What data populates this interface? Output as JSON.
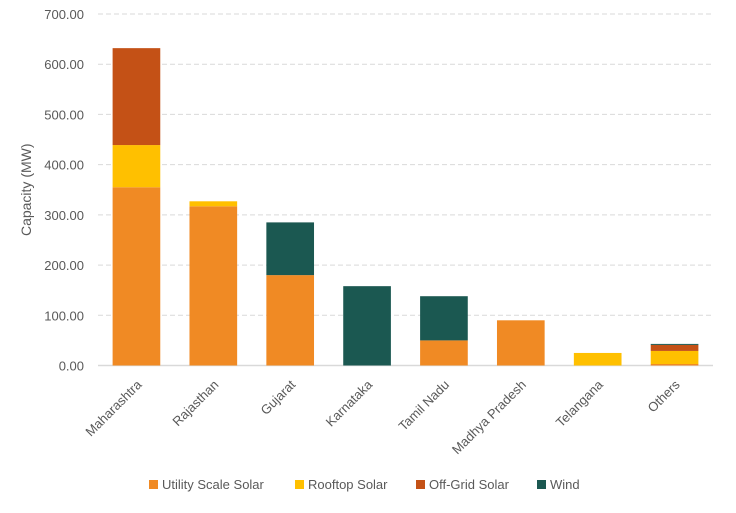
{
  "chart_data": {
    "type": "bar",
    "stacked": true,
    "title": "",
    "xlabel": "",
    "ylabel": "Capacity (MW)",
    "ylim": [
      0,
      700
    ],
    "yticks": [
      "0.00",
      "100.00",
      "200.00",
      "300.00",
      "400.00",
      "500.00",
      "600.00",
      "700.00"
    ],
    "grid": true,
    "legend_placement": "bottom",
    "categories": [
      "Maharashtra",
      "Rajasthan",
      "Gujarat",
      "Karnataka",
      "Tamil Nadu",
      "Madhya Pradesh",
      "Telangana",
      "Others"
    ],
    "series": [
      {
        "name": "Utility Scale Solar",
        "color": "#F08A24",
        "values": [
          355,
          317,
          180,
          0,
          50,
          90,
          0,
          3
        ]
      },
      {
        "name": "Rooftop Solar",
        "color": "#FFC000",
        "values": [
          84,
          10,
          0,
          0,
          0,
          0,
          25,
          26
        ]
      },
      {
        "name": "Off-Grid Solar",
        "color": "#C45116",
        "values": [
          193,
          0,
          0,
          0,
          0,
          0,
          0,
          12
        ]
      },
      {
        "name": "Wind",
        "color": "#1B5851",
        "values": [
          0,
          0,
          105,
          158,
          88,
          0,
          0,
          2
        ]
      }
    ]
  }
}
